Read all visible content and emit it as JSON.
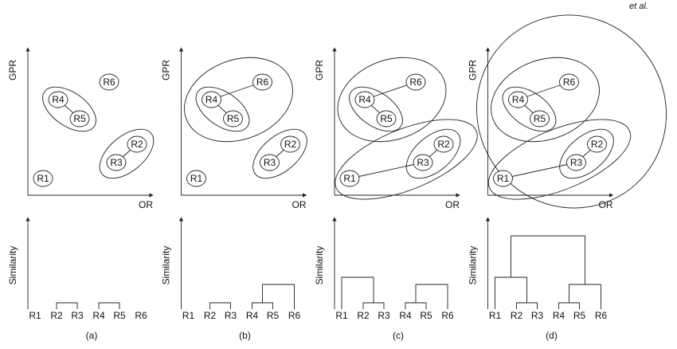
{
  "header": {
    "citation": "et al."
  },
  "panels": [
    {
      "caption": "(a)",
      "y_label": "GPR",
      "x_label": "OR",
      "dendrogram_y_label": "Similarity",
      "nodes": [
        "R6",
        "R4",
        "R5",
        "R2",
        "R3",
        "R1"
      ],
      "leaves": [
        "R1",
        "R2",
        "R3",
        "R4",
        "R5",
        "R6"
      ]
    },
    {
      "caption": "(b)",
      "y_label": "GPR",
      "x_label": "OR",
      "dendrogram_y_label": "Similarity",
      "nodes": [
        "R6",
        "R4",
        "R5",
        "R2",
        "R3",
        "R1"
      ],
      "leaves": [
        "R1",
        "R2",
        "R3",
        "R4",
        "R5",
        "R6"
      ]
    },
    {
      "caption": "(c)",
      "y_label": "GPR",
      "x_label": "OR",
      "dendrogram_y_label": "Similarity",
      "nodes": [
        "R6",
        "R4",
        "R5",
        "R2",
        "R3",
        "R1"
      ],
      "leaves": [
        "R1",
        "R2",
        "R3",
        "R4",
        "R5",
        "R6"
      ]
    },
    {
      "caption": "(d)",
      "y_label": "GPR",
      "x_label": "OR",
      "dendrogram_y_label": "Similarity",
      "nodes": [
        "R6",
        "R4",
        "R5",
        "R2",
        "R3",
        "R1"
      ],
      "leaves": [
        "R1",
        "R2",
        "R3",
        "R4",
        "R5",
        "R6"
      ]
    }
  ]
}
